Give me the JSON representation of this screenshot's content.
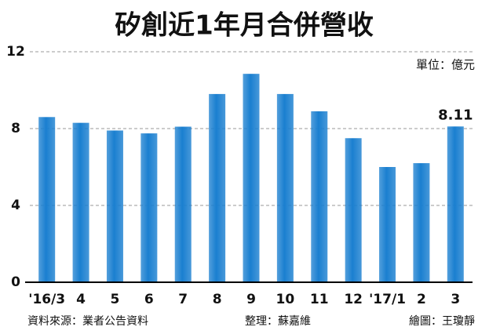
{
  "chart_data": {
    "type": "bar",
    "title": "矽創近1年月合併營收",
    "unit": "單位：億元",
    "source": "資料來源：業者公告資料",
    "editor": "整理：蘇嘉維",
    "artist": "繪圖：王瓊靜",
    "categories": [
      "'16/3",
      "4",
      "5",
      "6",
      "7",
      "8",
      "9",
      "10",
      "11",
      "12",
      "'17/1",
      "2",
      "3"
    ],
    "values": [
      8.6,
      8.3,
      7.9,
      7.75,
      8.1,
      9.8,
      10.85,
      9.8,
      8.9,
      7.5,
      6.0,
      6.2,
      8.11
    ],
    "color": "#1a7fd0",
    "ylim": [
      0,
      12
    ],
    "yticks": [
      0,
      4,
      8,
      12
    ],
    "grid": true
  }
}
